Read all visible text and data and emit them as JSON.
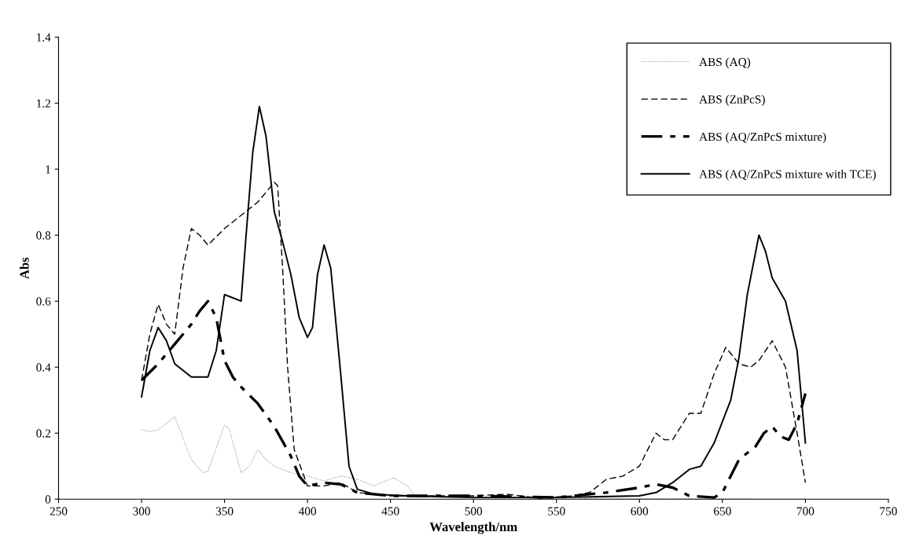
{
  "chart_data": {
    "type": "line",
    "xlabel": "Wavelength/nm",
    "ylabel": "Abs",
    "xlim": [
      250,
      750
    ],
    "xticks": [
      250,
      300,
      350,
      400,
      450,
      500,
      550,
      600,
      650,
      700,
      750
    ],
    "ylim": [
      0,
      1.4
    ],
    "yticks": [
      0,
      0.2,
      0.4,
      0.6,
      0.8,
      1,
      1.2,
      1.4
    ],
    "grid": false,
    "legend": "top right",
    "marker": "none",
    "series": [
      {
        "name": "ABS (AQ)",
        "color": "#888888",
        "line_style": "dotted",
        "x": [
          300,
          305,
          310,
          320,
          330,
          337,
          340,
          350,
          353,
          360,
          365,
          370,
          375,
          380,
          390,
          400,
          410,
          420,
          430,
          440,
          452,
          460,
          465,
          480,
          500,
          550,
          600,
          650,
          700
        ],
        "values": [
          0.21,
          0.205,
          0.21,
          0.25,
          0.12,
          0.08,
          0.085,
          0.225,
          0.21,
          0.08,
          0.1,
          0.15,
          0.12,
          0.1,
          0.08,
          0.07,
          0.055,
          0.07,
          0.06,
          0.04,
          0.065,
          0.04,
          0.01,
          0.005,
          0.005,
          0.003,
          0.002,
          0.001,
          0.0
        ]
      },
      {
        "name": "ABS (ZnPcS)",
        "color": "#000000",
        "line_style": "dashed",
        "x": [
          300,
          305,
          310,
          315,
          320,
          325,
          330,
          335,
          340,
          350,
          360,
          370,
          375,
          380,
          382,
          385,
          388,
          392,
          400,
          410,
          420,
          430,
          450,
          500,
          520,
          540,
          560,
          570,
          580,
          590,
          600,
          610,
          615,
          620,
          630,
          637,
          645,
          652,
          660,
          667,
          672,
          680,
          688,
          695,
          700
        ],
        "values": [
          0.36,
          0.5,
          0.59,
          0.53,
          0.5,
          0.7,
          0.82,
          0.8,
          0.77,
          0.82,
          0.86,
          0.9,
          0.93,
          0.96,
          0.95,
          0.7,
          0.4,
          0.15,
          0.04,
          0.04,
          0.05,
          0.02,
          0.01,
          0.01,
          0.015,
          0.003,
          0.01,
          0.02,
          0.06,
          0.07,
          0.1,
          0.2,
          0.18,
          0.18,
          0.26,
          0.26,
          0.38,
          0.46,
          0.41,
          0.4,
          0.42,
          0.48,
          0.4,
          0.2,
          0.05
        ]
      },
      {
        "name": "ABS (AQ/ZnPcS mixture)",
        "color": "#000000",
        "line_style": "dashdot",
        "x": [
          300,
          310,
          320,
          330,
          335,
          340,
          345,
          350,
          355,
          360,
          370,
          380,
          390,
          395,
          400,
          410,
          420,
          430,
          450,
          500,
          550,
          580,
          600,
          610,
          620,
          630,
          645,
          650,
          655,
          660,
          670,
          675,
          680,
          685,
          690,
          695,
          700
        ],
        "values": [
          0.36,
          0.41,
          0.47,
          0.53,
          0.57,
          0.6,
          0.55,
          0.42,
          0.37,
          0.34,
          0.29,
          0.22,
          0.13,
          0.07,
          0.04,
          0.05,
          0.045,
          0.02,
          0.01,
          0.01,
          0.005,
          0.02,
          0.035,
          0.045,
          0.035,
          0.01,
          0.005,
          0.02,
          0.07,
          0.12,
          0.16,
          0.2,
          0.22,
          0.19,
          0.18,
          0.23,
          0.32
        ]
      },
      {
        "name": "ABS (AQ/ZnPcS mixture with TCE)",
        "color": "#000000",
        "line_style": "solid",
        "x": [
          300,
          305,
          310,
          315,
          320,
          330,
          340,
          345,
          350,
          355,
          360,
          363,
          367,
          371,
          375,
          380,
          385,
          390,
          395,
          400,
          403,
          406,
          410,
          414,
          420,
          425,
          430,
          440,
          460,
          500,
          550,
          600,
          610,
          620,
          630,
          637,
          645,
          655,
          660,
          665,
          672,
          676,
          680,
          688,
          695,
          700
        ],
        "values": [
          0.31,
          0.45,
          0.52,
          0.48,
          0.41,
          0.37,
          0.37,
          0.45,
          0.62,
          0.61,
          0.6,
          0.8,
          1.05,
          1.19,
          1.1,
          0.87,
          0.78,
          0.68,
          0.55,
          0.49,
          0.52,
          0.68,
          0.77,
          0.7,
          0.38,
          0.1,
          0.03,
          0.015,
          0.01,
          0.005,
          0.005,
          0.01,
          0.02,
          0.05,
          0.09,
          0.1,
          0.17,
          0.3,
          0.43,
          0.62,
          0.8,
          0.75,
          0.67,
          0.6,
          0.45,
          0.17
        ]
      }
    ]
  }
}
